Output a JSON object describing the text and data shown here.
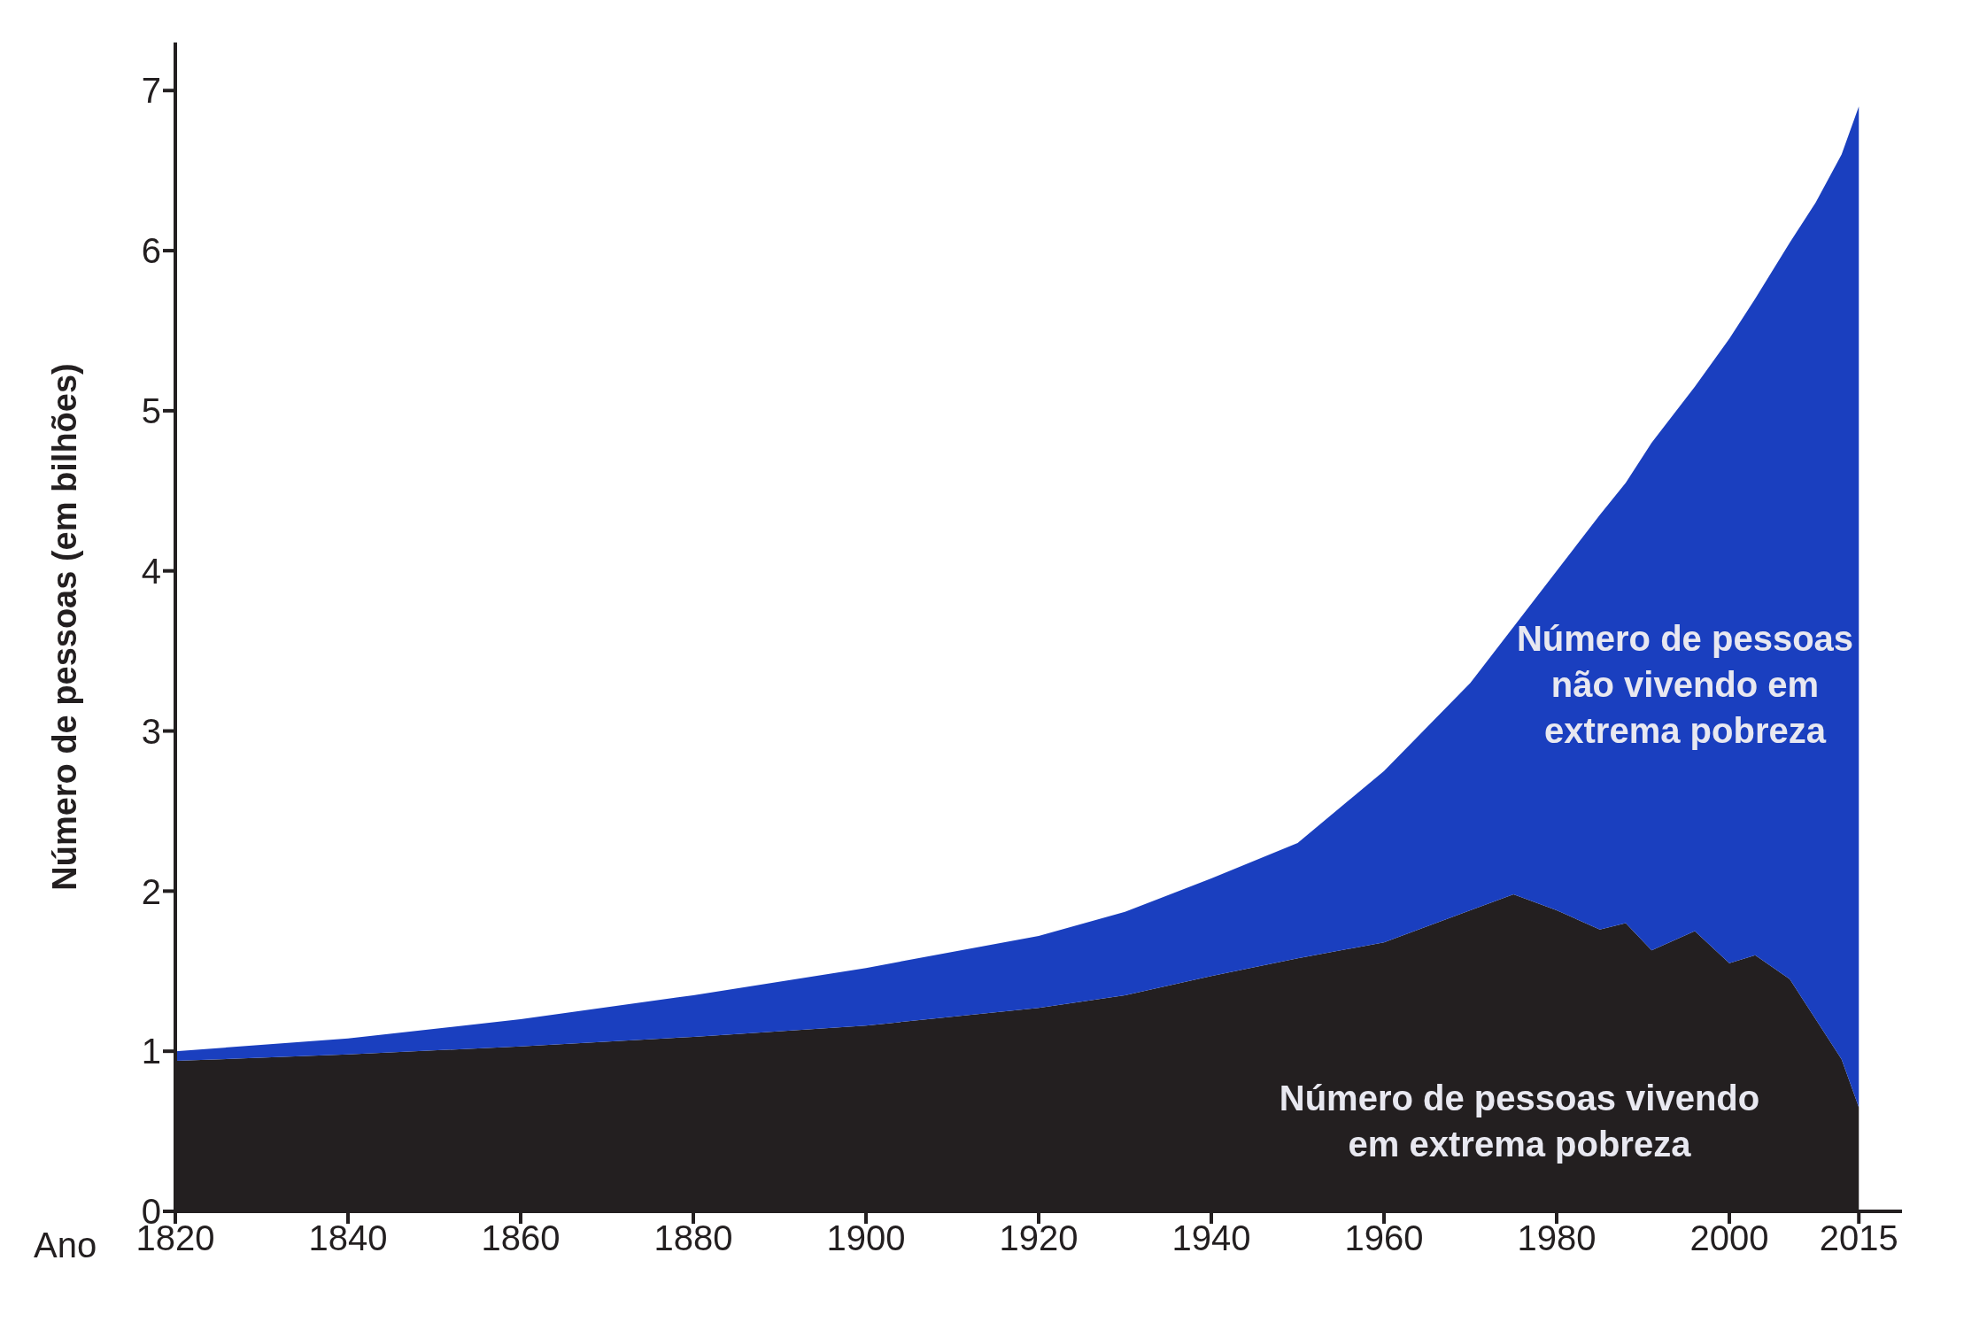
{
  "chart_data": {
    "type": "area",
    "xlabel": "Ano",
    "ylabel": "Número de pessoas (em bilhões)",
    "stacked": true,
    "x": [
      1820,
      1840,
      1860,
      1880,
      1900,
      1920,
      1930,
      1940,
      1950,
      1960,
      1970,
      1975,
      1980,
      1985,
      1988,
      1991,
      1996,
      2000,
      2003,
      2007,
      2010,
      2013,
      2015
    ],
    "series": [
      {
        "name": "Número de pessoas vivendo em extrema pobreza",
        "color": "#231f20",
        "values": [
          0.94,
          0.98,
          1.03,
          1.09,
          1.16,
          1.27,
          1.35,
          1.47,
          1.58,
          1.68,
          1.88,
          1.98,
          1.88,
          1.76,
          1.8,
          1.63,
          1.75,
          1.55,
          1.6,
          1.45,
          1.2,
          0.95,
          0.65
        ]
      },
      {
        "name": "Número de pessoas não vivendo em extrema pobreza",
        "color": "#1a3fbf",
        "values": [
          0.06,
          0.1,
          0.17,
          0.26,
          0.36,
          0.45,
          0.52,
          0.61,
          0.72,
          1.07,
          1.42,
          1.67,
          2.12,
          2.59,
          2.75,
          3.17,
          3.4,
          3.9,
          4.1,
          4.6,
          5.1,
          5.65,
          6.25
        ]
      }
    ],
    "xlim": [
      1820,
      2020
    ],
    "xticks": [
      1820,
      1840,
      1860,
      1880,
      1900,
      1920,
      1940,
      1960,
      1980,
      2000,
      2015
    ],
    "ylim": [
      0,
      7.3
    ],
    "yticks": [
      0,
      1,
      2,
      3,
      4,
      5,
      6,
      7
    ]
  }
}
